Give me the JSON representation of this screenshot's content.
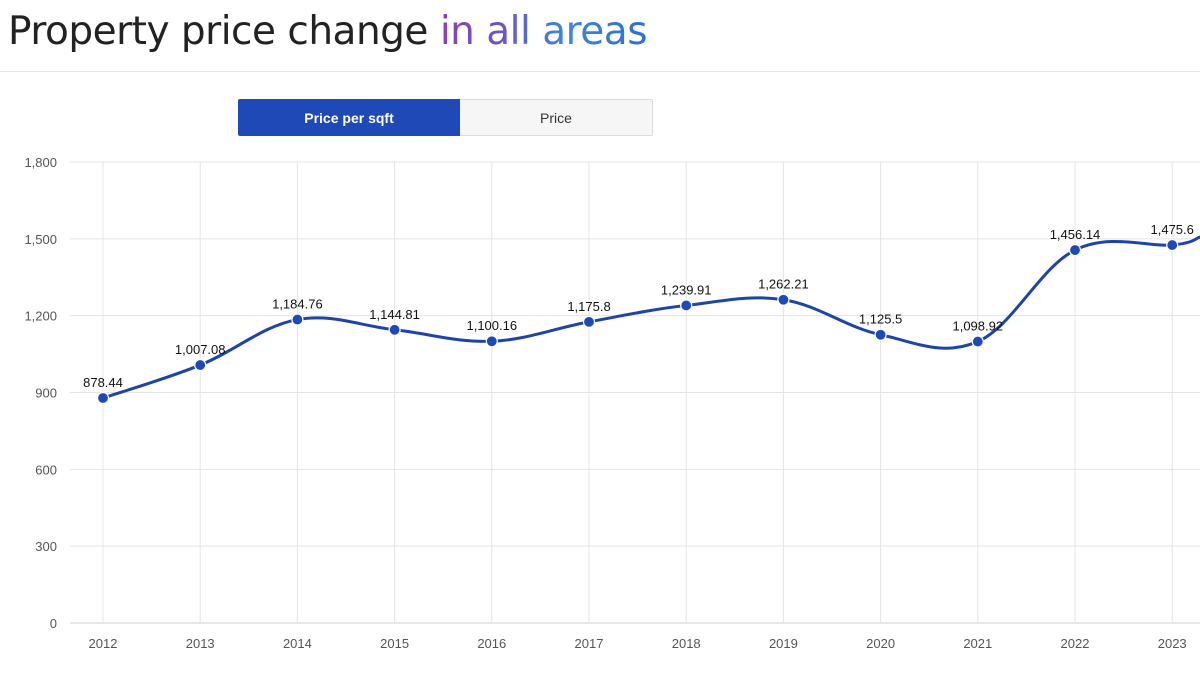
{
  "header": {
    "title_main": "Property price change ",
    "title_accent": "in all areas"
  },
  "toggle": {
    "active_label": "Price per sqft",
    "inactive_label": "Price"
  },
  "colors": {
    "line": "#1f44a8",
    "point": "#1f49b6",
    "grid": "#e4e4e4",
    "active_tab": "#1f49b6"
  },
  "chart_data": {
    "type": "line",
    "x": [
      "2012",
      "2013",
      "2014",
      "2015",
      "2016",
      "2017",
      "2018",
      "2019",
      "2020",
      "2021",
      "2022",
      "2023"
    ],
    "series": [
      {
        "values": [
          878.44,
          1007.08,
          1184.76,
          1144.81,
          1100.16,
          1175.8,
          1239.91,
          1262.21,
          1125.5,
          1098.92,
          1456.14,
          1475.6
        ]
      }
    ],
    "data_labels": [
      "878.44",
      "1,007.08",
      "1,184.76",
      "1,144.81",
      "1,100.16",
      "1,175.8",
      "1,239.91",
      "1,262.21",
      "1,125.5",
      "1,098.92",
      "1,456.14",
      "1,475.6"
    ],
    "yticks": [
      "0",
      "300",
      "600",
      "900",
      "1,200",
      "1,500",
      "1,800"
    ],
    "ylim": [
      0,
      1800
    ],
    "grid": true
  }
}
